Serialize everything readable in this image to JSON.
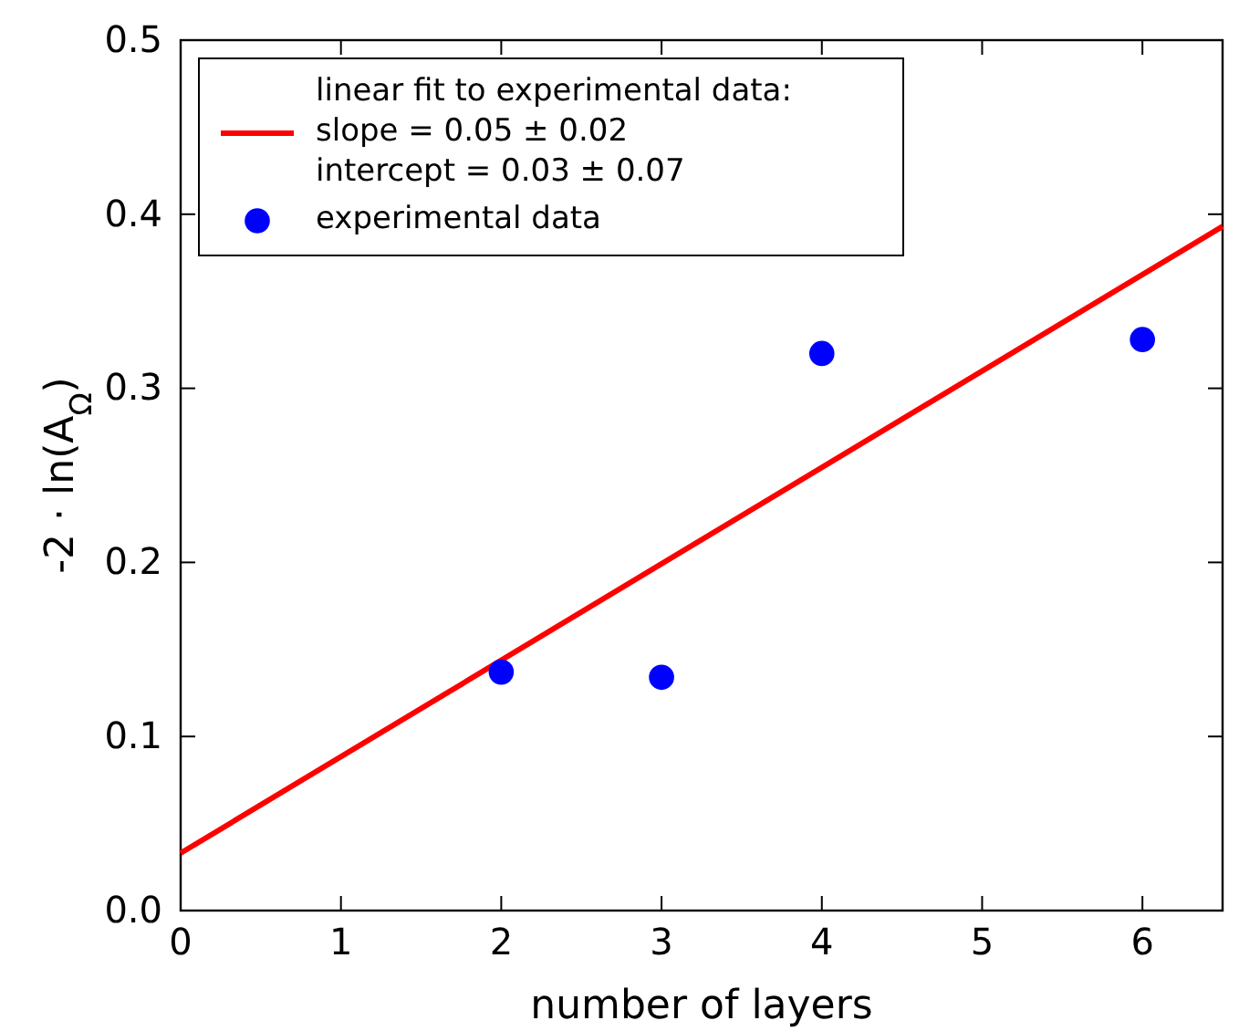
{
  "chart_data": {
    "type": "scatter",
    "xlabel": "number of layers",
    "ylabel": "-2 · ln(A$_{Ω}$)",
    "xlim": [
      0,
      6.5
    ],
    "ylim": [
      0,
      0.5
    ],
    "xticks": [
      0,
      1,
      2,
      3,
      4,
      5,
      6
    ],
    "yticks": [
      {
        "value": 0,
        "label": "0.0"
      },
      0.1,
      0.2,
      0.3,
      0.4,
      0.5
    ],
    "grid": false,
    "legend": "top left",
    "series": [
      {
        "type": "line",
        "name": "linear fit to experimental data:\nslope = 0.05 ± 0.02\nintercept = 0.03 ± 0.07",
        "color": "#ff0000",
        "x": [
          0,
          6.5
        ],
        "values": [
          0.033,
          0.393
        ],
        "marker": "none",
        "line_style": "solid"
      },
      {
        "name": "experimental data",
        "color": "#0000ff",
        "x": [
          2,
          3,
          4,
          6
        ],
        "values": [
          0.137,
          0.134,
          0.32,
          0.328
        ],
        "marker": "circle"
      }
    ]
  }
}
